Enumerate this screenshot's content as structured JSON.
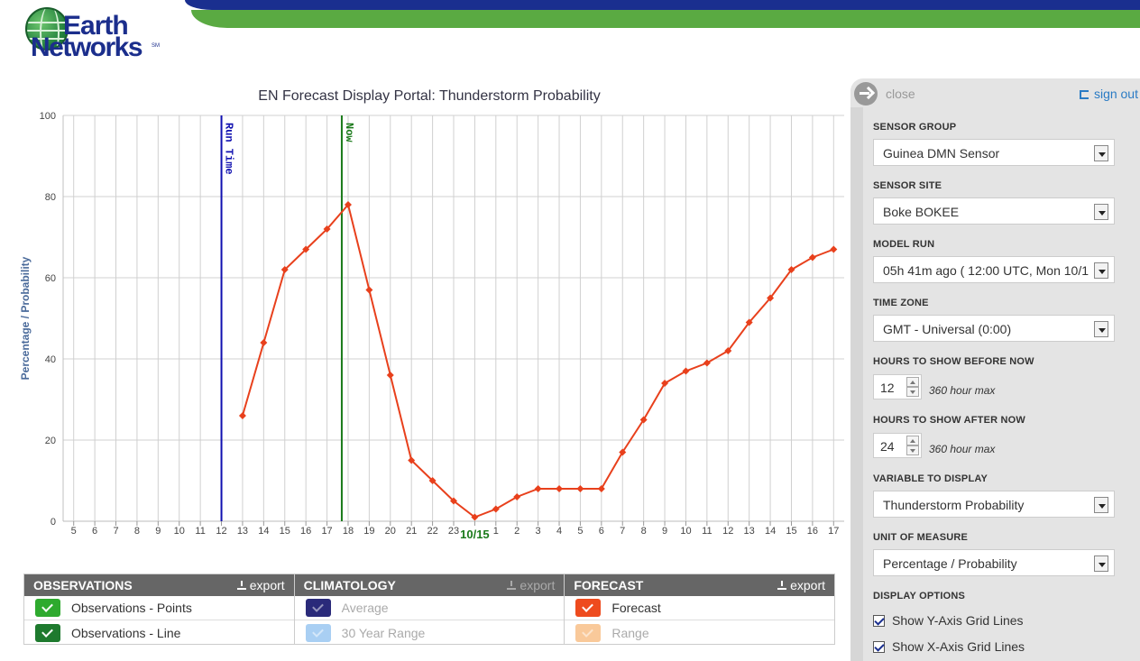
{
  "brand": {
    "line1": "Earth",
    "line2": "Networks",
    "mark": "SM"
  },
  "colors": {
    "header_blue": "#1a2f8f",
    "header_green": "#5aaa42",
    "forecast": "#e8401c",
    "run_time": "#1010b0",
    "now": "#1a7a1a"
  },
  "chart_data": {
    "type": "line",
    "title": "EN Forecast Display Portal: Thunderstorm Probability",
    "ylabel": "Percentage / Probability",
    "ylim": [
      0,
      100
    ],
    "y_ticks": [
      "0",
      "20",
      "40",
      "60",
      "80",
      "100"
    ],
    "x_ticks": [
      "5",
      "6",
      "7",
      "8",
      "9",
      "10",
      "11",
      "12",
      "13",
      "14",
      "15",
      "16",
      "17",
      "18",
      "19",
      "20",
      "21",
      "22",
      "23",
      "",
      "1",
      "2",
      "3",
      "4",
      "5",
      "6",
      "7",
      "8",
      "9",
      "10",
      "11",
      "12",
      "13",
      "14",
      "15",
      "16",
      "17"
    ],
    "date_label": "10/15",
    "markers": [
      {
        "label": "Run Time",
        "x_index": 7
      },
      {
        "label": "Now",
        "x_index": 12.7
      }
    ],
    "series": [
      {
        "name": "Forecast",
        "x_index": [
          8,
          9,
          10,
          11,
          12,
          13,
          14,
          15,
          16,
          17,
          18,
          19,
          20,
          21,
          22,
          23,
          24,
          25,
          26,
          27,
          28,
          29,
          30,
          31,
          32,
          33,
          34,
          35,
          36
        ],
        "values": [
          26,
          44,
          62,
          67,
          72,
          78,
          57,
          36,
          15,
          10,
          5,
          1,
          3,
          6,
          8,
          8,
          8,
          8,
          17,
          25,
          34,
          37,
          39,
          42,
          49,
          55,
          62,
          65,
          67
        ]
      }
    ],
    "grid": {
      "x": true,
      "y": true
    }
  },
  "legend": {
    "observations": {
      "title": "OBSERVATIONS",
      "export": "export",
      "items": [
        {
          "label": "Observations - Points",
          "color": "#2eaa2e"
        },
        {
          "label": "Observations - Line",
          "color": "#1e7a2e"
        }
      ]
    },
    "climatology": {
      "title": "CLIMATOLOGY",
      "export": "export",
      "items": [
        {
          "label": "Average",
          "color": "#2a2a7a"
        },
        {
          "label": "30 Year Range",
          "color": "#a9cff3"
        }
      ]
    },
    "forecast": {
      "title": "FORECAST",
      "export": "export",
      "items": [
        {
          "label": "Forecast",
          "color": "#ee4b1e"
        },
        {
          "label": "Range",
          "color": "#f9c99a"
        }
      ]
    }
  },
  "panel": {
    "close": "close",
    "signout": "sign out",
    "sensor_group": {
      "label": "SENSOR GROUP",
      "value": "Guinea DMN Sensor"
    },
    "sensor_site": {
      "label": "SENSOR SITE",
      "value": "Boke BOKEE"
    },
    "model_run": {
      "label": "MODEL RUN",
      "value": "05h 41m ago ( 12:00 UTC, Mon 10/1"
    },
    "time_zone": {
      "label": "TIME ZONE",
      "value": "GMT - Universal (0:00)"
    },
    "hours_before": {
      "label": "HOURS TO SHOW BEFORE NOW",
      "value": "12",
      "note": "360 hour max"
    },
    "hours_after": {
      "label": "HOURS TO SHOW AFTER NOW",
      "value": "24",
      "note": "360 hour max"
    },
    "variable": {
      "label": "VARIABLE TO DISPLAY",
      "value": "Thunderstorm Probability"
    },
    "unit": {
      "label": "UNIT OF MEASURE",
      "value": "Percentage / Probability"
    },
    "display_options": {
      "label": "DISPLAY OPTIONS",
      "y_grid": "Show Y-Axis Grid Lines",
      "x_grid": "Show X-Axis Grid Lines"
    }
  }
}
